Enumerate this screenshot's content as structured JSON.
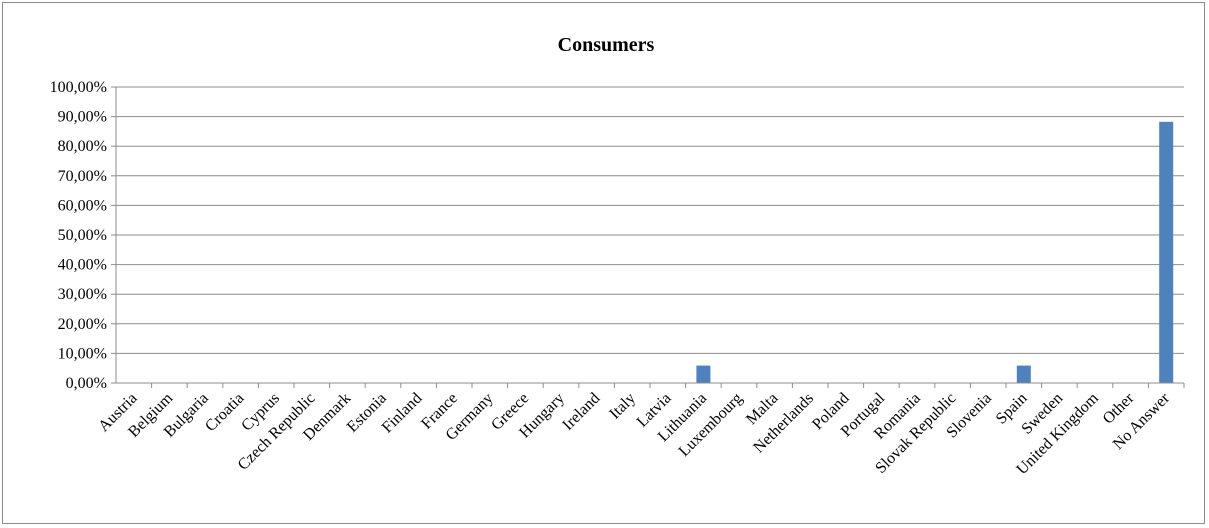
{
  "chart_data": {
    "type": "bar",
    "title": "Consumers",
    "xlabel": "",
    "ylabel": "",
    "ylim": [
      0,
      100
    ],
    "y_ticks": [
      "0,00%",
      "10,00%",
      "20,00%",
      "30,00%",
      "40,00%",
      "50,00%",
      "60,00%",
      "70,00%",
      "80,00%",
      "90,00%",
      "100,00%"
    ],
    "grid": true,
    "legend": "none",
    "bar_color": "#4F81BD",
    "categories": [
      "Austria",
      "Belgium",
      "Bulgaria",
      "Croatia",
      "Cyprus",
      "Czech Republic",
      "Denmark",
      "Estonia",
      "Finland",
      "France",
      "Germany",
      "Greece",
      "Hungary",
      "Ireland",
      "Italy",
      "Latvia",
      "Lithuania",
      "Luxembourg",
      "Malta",
      "Netherlands",
      "Poland",
      "Portugal",
      "Romania",
      "Slovak Republic",
      "Slovenia",
      "Spain",
      "Sweden",
      "United Kingdom",
      "Other",
      "No Answer"
    ],
    "values": [
      0,
      0,
      0,
      0,
      0,
      0,
      0,
      0,
      0,
      0,
      0,
      0,
      0,
      0,
      0,
      0,
      5.88,
      0,
      0,
      0,
      0,
      0,
      0,
      0,
      0,
      5.88,
      0,
      0,
      0,
      88.24
    ]
  }
}
